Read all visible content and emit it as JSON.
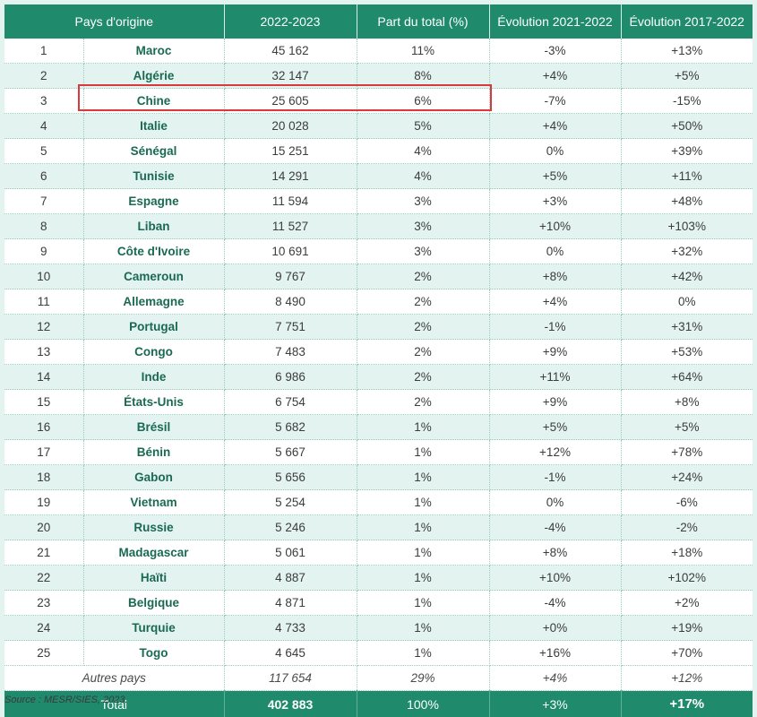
{
  "headers": [
    "Pays d'origine",
    "2022-2023",
    "Part du total (%)",
    "Évolution 2021-2022",
    "Évolution 2017-2022"
  ],
  "rows": [
    {
      "rank": "1",
      "country": "Maroc",
      "count": "45 162",
      "share": "11%",
      "evo1": "-3%",
      "evo2": "+13%"
    },
    {
      "rank": "2",
      "country": "Algérie",
      "count": "32 147",
      "share": "8%",
      "evo1": "+4%",
      "evo2": "+5%"
    },
    {
      "rank": "3",
      "country": "Chine",
      "count": "25 605",
      "share": "6%",
      "evo1": "-7%",
      "evo2": "-15%"
    },
    {
      "rank": "4",
      "country": "Italie",
      "count": "20 028",
      "share": "5%",
      "evo1": "+4%",
      "evo2": "+50%"
    },
    {
      "rank": "5",
      "country": "Sénégal",
      "count": "15 251",
      "share": "4%",
      "evo1": "0%",
      "evo2": "+39%"
    },
    {
      "rank": "6",
      "country": "Tunisie",
      "count": "14 291",
      "share": "4%",
      "evo1": "+5%",
      "evo2": "+11%"
    },
    {
      "rank": "7",
      "country": "Espagne",
      "count": "11 594",
      "share": "3%",
      "evo1": "+3%",
      "evo2": "+48%"
    },
    {
      "rank": "8",
      "country": "Liban",
      "count": "11 527",
      "share": "3%",
      "evo1": "+10%",
      "evo2": "+103%"
    },
    {
      "rank": "9",
      "country": "Côte d'Ivoire",
      "count": "10 691",
      "share": "3%",
      "evo1": "0%",
      "evo2": "+32%"
    },
    {
      "rank": "10",
      "country": "Cameroun",
      "count": "9 767",
      "share": "2%",
      "evo1": "+8%",
      "evo2": "+42%"
    },
    {
      "rank": "11",
      "country": "Allemagne",
      "count": "8 490",
      "share": "2%",
      "evo1": "+4%",
      "evo2": "0%"
    },
    {
      "rank": "12",
      "country": "Portugal",
      "count": "7 751",
      "share": "2%",
      "evo1": "-1%",
      "evo2": "+31%"
    },
    {
      "rank": "13",
      "country": "Congo",
      "count": "7 483",
      "share": "2%",
      "evo1": "+9%",
      "evo2": "+53%"
    },
    {
      "rank": "14",
      "country": "Inde",
      "count": "6 986",
      "share": "2%",
      "evo1": "+11%",
      "evo2": "+64%"
    },
    {
      "rank": "15",
      "country": "États-Unis",
      "count": "6 754",
      "share": "2%",
      "evo1": "+9%",
      "evo2": "+8%"
    },
    {
      "rank": "16",
      "country": "Brésil",
      "count": "5 682",
      "share": "1%",
      "evo1": "+5%",
      "evo2": "+5%"
    },
    {
      "rank": "17",
      "country": "Bénin",
      "count": "5 667",
      "share": "1%",
      "evo1": "+12%",
      "evo2": "+78%"
    },
    {
      "rank": "18",
      "country": "Gabon",
      "count": "5 656",
      "share": "1%",
      "evo1": "-1%",
      "evo2": "+24%"
    },
    {
      "rank": "19",
      "country": "Vietnam",
      "count": "5 254",
      "share": "1%",
      "evo1": "0%",
      "evo2": "-6%"
    },
    {
      "rank": "20",
      "country": "Russie",
      "count": "5 246",
      "share": "1%",
      "evo1": "-4%",
      "evo2": "-2%"
    },
    {
      "rank": "21",
      "country": "Madagascar",
      "count": "5 061",
      "share": "1%",
      "evo1": "+8%",
      "evo2": "+18%"
    },
    {
      "rank": "22",
      "country": "Haïti",
      "count": "4 887",
      "share": "1%",
      "evo1": "+10%",
      "evo2": "+102%"
    },
    {
      "rank": "23",
      "country": "Belgique",
      "count": "4 871",
      "share": "1%",
      "evo1": "-4%",
      "evo2": "+2%"
    },
    {
      "rank": "24",
      "country": "Turquie",
      "count": "4 733",
      "share": "1%",
      "evo1": "+0%",
      "evo2": "+19%"
    },
    {
      "rank": "25",
      "country": "Togo",
      "count": "4 645",
      "share": "1%",
      "evo1": "+16%",
      "evo2": "+70%"
    }
  ],
  "other": {
    "label": "Autres pays",
    "count": "117 654",
    "share": "29%",
    "evo1": "+4%",
    "evo2": "+12%"
  },
  "total": {
    "label": "Total",
    "count": "402 883",
    "share": "100%",
    "evo1": "+3%",
    "evo2": "+17%"
  },
  "source": "Source : MESR/SIES, 2023.",
  "colors": {
    "header": "#1f8a6c",
    "country_text": "#1a6a53",
    "highlight": "#d8393b",
    "band": "#e3f3ef"
  }
}
